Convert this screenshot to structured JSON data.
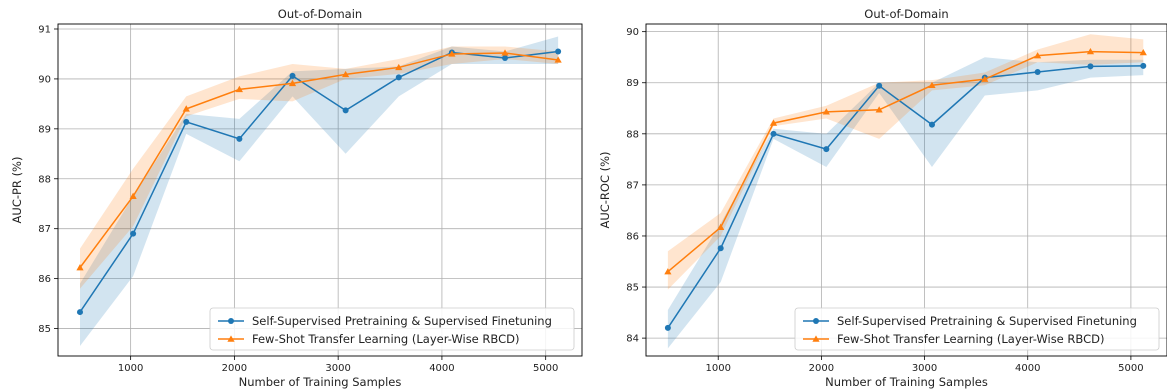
{
  "colors": {
    "series_a": "#1f77b4",
    "series_b": "#ff7f0e",
    "grid": "#b0b0b0",
    "axis": "#000000"
  },
  "chart_data": [
    {
      "type": "line",
      "title": "Out-of-Domain",
      "xlabel": "Number of Training Samples",
      "ylabel": "AUC-PR (%)",
      "xlim": [
        300,
        5350
      ],
      "ylim": [
        84.45,
        91.1
      ],
      "xticks": [
        1000,
        2000,
        3000,
        4000,
        5000
      ],
      "yticks": [
        85,
        86,
        87,
        88,
        89,
        90,
        91
      ],
      "grid": true,
      "legend_position": "lower-right",
      "x": [
        512,
        1024,
        1536,
        2048,
        2560,
        3072,
        3584,
        4096,
        4608,
        5120
      ],
      "series": [
        {
          "name": "Self-Supervised Pretraining & Supervised Finetuning",
          "marker": "circle",
          "values": [
            85.33,
            86.9,
            89.14,
            88.8,
            90.06,
            89.37,
            90.03,
            90.53,
            90.42,
            90.55
          ],
          "band_low": [
            84.65,
            86.05,
            88.9,
            88.35,
            89.65,
            88.5,
            89.65,
            90.3,
            90.3,
            90.3
          ],
          "band_high": [
            85.9,
            87.65,
            89.3,
            89.2,
            90.15,
            90.2,
            90.25,
            90.65,
            90.55,
            90.85
          ]
        },
        {
          "name": "Few-Shot Transfer Learning (Layer-Wise RBCD)",
          "marker": "triangle",
          "values": [
            86.22,
            87.65,
            89.4,
            89.79,
            89.91,
            90.09,
            90.23,
            90.5,
            90.52,
            90.38
          ],
          "band_low": [
            85.8,
            87.05,
            89.25,
            89.6,
            89.55,
            90.0,
            90.1,
            90.3,
            90.4,
            90.3
          ],
          "band_high": [
            86.6,
            88.2,
            89.65,
            90.05,
            90.3,
            90.2,
            90.4,
            90.65,
            90.65,
            90.55
          ]
        }
      ]
    },
    {
      "type": "line",
      "title": "Out-of-Domain",
      "xlabel": "Number of Training Samples",
      "ylabel": "AUC-ROC (%)",
      "xlim": [
        300,
        5350
      ],
      "ylim": [
        83.65,
        90.15
      ],
      "xticks": [
        1000,
        2000,
        3000,
        4000,
        5000
      ],
      "yticks": [
        84,
        85,
        86,
        87,
        88,
        89,
        90
      ],
      "grid": true,
      "legend_position": "lower-right",
      "x": [
        512,
        1024,
        1536,
        2048,
        2560,
        3072,
        3584,
        4096,
        4608,
        5120
      ],
      "series": [
        {
          "name": "Self-Supervised Pretraining & Supervised Finetuning",
          "marker": "circle",
          "values": [
            84.2,
            85.76,
            88.0,
            87.7,
            88.94,
            88.18,
            89.1,
            89.21,
            89.32,
            89.33
          ],
          "band_low": [
            83.8,
            85.1,
            87.9,
            87.35,
            88.8,
            87.35,
            88.75,
            88.85,
            89.1,
            89.15
          ],
          "band_high": [
            84.55,
            86.25,
            88.1,
            88.0,
            89.0,
            89.0,
            89.5,
            89.4,
            89.45,
            89.45
          ]
        },
        {
          "name": "Few-Shot Transfer Learning (Layer-Wise RBCD)",
          "marker": "triangle",
          "values": [
            85.3,
            86.17,
            88.21,
            88.43,
            88.47,
            88.95,
            89.07,
            89.53,
            89.61,
            89.59
          ],
          "band_low": [
            84.95,
            86.0,
            88.15,
            88.3,
            87.9,
            88.85,
            88.95,
            89.4,
            89.35,
            89.4
          ],
          "band_high": [
            85.7,
            86.45,
            88.3,
            88.55,
            89.0,
            89.05,
            89.2,
            89.65,
            89.95,
            89.85
          ]
        }
      ]
    }
  ]
}
